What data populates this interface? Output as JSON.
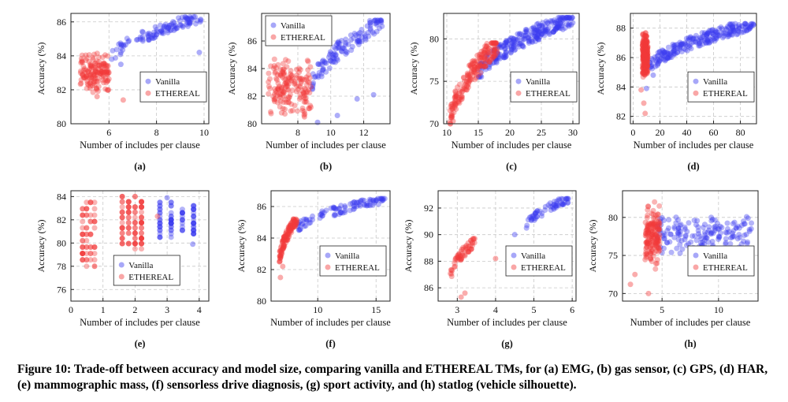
{
  "caption": "Figure 10: Trade-off between accuracy and model size, comparing vanilla and ETHEREAL TMs, for (a) EMG, (b) gas sensor, (c) GPS, (d) HAR, (e) mammographic mass, (f) sensorless drive diagnosis, (g) sport activity, and (h) statlog (vehicle silhouette).",
  "colors": {
    "vanilla": "#3b3bf0",
    "ethereal": "#f23a3a",
    "grid": "#c8c8c8"
  },
  "chart_data": [
    {
      "type": "scatter",
      "id": "a",
      "label": "(a)",
      "xlabel": "Number of includes per clause",
      "ylabel": "Accuracy (%)",
      "xlim": [
        4.4,
        10.2
      ],
      "ylim": [
        80,
        86.5
      ],
      "xticks": [
        6,
        8,
        10
      ],
      "yticks": [
        80,
        82,
        84,
        86
      ],
      "legend": "center-right",
      "series": [
        {
          "name": "Vanilla",
          "clusters": [
            {
              "x": [
                6.1,
                9.9
              ],
              "y": [
                83.8,
                86.3
              ],
              "n": 110,
              "trend": "rising"
            }
          ],
          "points": [
            [
              9.3,
              86.2
            ],
            [
              9.8,
              84.2
            ],
            [
              6.5,
              83.5
            ]
          ]
        },
        {
          "name": "ETHEREAL",
          "clusters": [
            {
              "x": [
                4.8,
                6.0
              ],
              "y": [
                81.8,
                84.2
              ],
              "n": 150,
              "trend": "none"
            }
          ],
          "points": [
            [
              6.6,
              81.4
            ],
            [
              5.5,
              81.6
            ]
          ]
        }
      ]
    },
    {
      "type": "scatter",
      "id": "b",
      "label": "(b)",
      "xlabel": "Number of includes per clause",
      "ylabel": "Accuracy (%)",
      "xlim": [
        5.8,
        13.6
      ],
      "ylim": [
        80,
        88
      ],
      "xticks": [
        8,
        10,
        12
      ],
      "yticks": [
        80,
        82,
        84,
        86
      ],
      "legend": "top-left",
      "series": [
        {
          "name": "Vanilla",
          "clusters": [
            {
              "x": [
                8.8,
                13.2
              ],
              "y": [
                82.5,
                87.5
              ],
              "n": 120,
              "trend": "rising"
            }
          ],
          "points": [
            [
              9.2,
              80.1
            ],
            [
              11.6,
              81.8
            ],
            [
              12.6,
              82.1
            ],
            [
              10.4,
              80.6
            ]
          ]
        },
        {
          "name": "ETHEREAL",
          "clusters": [
            {
              "x": [
                6.2,
                8.8
              ],
              "y": [
                80.2,
                85.0
              ],
              "n": 170,
              "trend": "none"
            }
          ],
          "points": [
            [
              8.4,
              80.5
            ],
            [
              8.7,
              81.1
            ]
          ]
        }
      ]
    },
    {
      "type": "scatter",
      "id": "c",
      "label": "(c)",
      "xlabel": "Number of includes per clause",
      "ylabel": "Accuracy (%)",
      "xlim": [
        9.5,
        31
      ],
      "ylim": [
        70,
        83
      ],
      "xticks": [
        10,
        15,
        20,
        25,
        30
      ],
      "yticks": [
        70,
        75,
        80
      ],
      "legend": "center-right",
      "series": [
        {
          "name": "Vanilla",
          "clusters": [
            {
              "x": [
                15,
                30
              ],
              "y": [
                75.5,
                82.5
              ],
              "n": 260,
              "trend": "rising"
            }
          ],
          "points": []
        },
        {
          "name": "ETHEREAL",
          "clusters": [
            {
              "x": [
                10.5,
                18
              ],
              "y": [
                70,
                79.5
              ],
              "n": 200,
              "trend": "rising"
            }
          ],
          "points": [
            [
              11,
              70.3
            ],
            [
              10.8,
              71.2
            ]
          ]
        }
      ]
    },
    {
      "type": "scatter",
      "id": "d",
      "label": "(d)",
      "xlabel": "Number of includes per clause",
      "ylabel": "Accuracy (%)",
      "xlim": [
        -2,
        92
      ],
      "ylim": [
        81.5,
        89
      ],
      "xticks": [
        0,
        20,
        40,
        60,
        80
      ],
      "yticks": [
        82,
        84,
        86,
        88
      ],
      "legend": "center-right",
      "series": [
        {
          "name": "Vanilla",
          "clusters": [
            {
              "x": [
                12,
                90
              ],
              "y": [
                85.2,
                88.3
              ],
              "n": 230,
              "trend": "rising"
            }
          ],
          "points": [
            [
              10,
              83.9
            ],
            [
              15,
              84.8
            ]
          ]
        },
        {
          "name": "ETHEREAL",
          "clusters": [
            {
              "x": [
                7,
                11
              ],
              "y": [
                84.5,
                87.8
              ],
              "n": 260,
              "trend": "none"
            }
          ],
          "points": [
            [
              8,
              82.9
            ],
            [
              9,
              82.2
            ],
            [
              6,
              83.8
            ]
          ]
        }
      ]
    },
    {
      "type": "scatter",
      "id": "e",
      "label": "(e)",
      "xlabel": "Number of includes per clause",
      "ylabel": "Accuracy (%)",
      "xlim": [
        0,
        4.3
      ],
      "ylim": [
        75,
        84.5
      ],
      "xticks": [
        0,
        1,
        2,
        3,
        4
      ],
      "yticks": [
        76,
        78,
        80,
        82,
        84
      ],
      "legend": "bottom-center",
      "series": [
        {
          "name": "Vanilla",
          "clusters": [
            {
              "x": [
                2.6,
                4.0
              ],
              "y": [
                80.5,
                83.5
              ],
              "n": 90,
              "trend": "columns"
            }
          ],
          "points": [
            [
              3.0,
              83.9
            ],
            [
              3.8,
              79.9
            ]
          ]
        },
        {
          "name": "ETHEREAL",
          "clusters": [
            {
              "x": [
                0.3,
                0.8
              ],
              "y": [
                78,
                83.5
              ],
              "n": 70,
              "trend": "columns"
            },
            {
              "x": [
                1.5,
                2.3
              ],
              "y": [
                79.5,
                84
              ],
              "n": 110,
              "trend": "columns"
            }
          ],
          "points": [
            [
              2.7,
              82.3
            ]
          ]
        }
      ]
    },
    {
      "type": "scatter",
      "id": "f",
      "label": "(f)",
      "xlabel": "Number of includes per clause",
      "ylabel": "Accuracy (%)",
      "xlim": [
        6,
        16.2
      ],
      "ylim": [
        80,
        87
      ],
      "xticks": [
        10,
        15
      ],
      "yticks": [
        80,
        82,
        84,
        86
      ],
      "legend": "bottom-right",
      "series": [
        {
          "name": "Vanilla",
          "clusters": [
            {
              "x": [
                8.2,
                15.8
              ],
              "y": [
                84.5,
                86.5
              ],
              "n": 100,
              "trend": "rising"
            }
          ],
          "points": []
        },
        {
          "name": "ETHEREAL",
          "clusters": [
            {
              "x": [
                6.7,
                8.2
              ],
              "y": [
                82.5,
                85.2
              ],
              "n": 120,
              "trend": "rising"
            }
          ],
          "points": [
            [
              6.8,
              81.5
            ],
            [
              7.0,
              82.2
            ]
          ]
        }
      ]
    },
    {
      "type": "scatter",
      "id": "g",
      "label": "(g)",
      "xlabel": "Number of includes per clause",
      "ylabel": "Accuracy (%)",
      "xlim": [
        2.5,
        6.1
      ],
      "ylim": [
        85,
        93.3
      ],
      "xticks": [
        3,
        4,
        5,
        6
      ],
      "yticks": [
        86,
        88,
        90,
        92
      ],
      "legend": "bottom-right",
      "series": [
        {
          "name": "Vanilla",
          "clusters": [
            {
              "x": [
                4.8,
                5.9
              ],
              "y": [
                90.5,
                92.7
              ],
              "n": 60,
              "trend": "rising"
            }
          ],
          "points": [
            [
              4.5,
              90.0
            ]
          ]
        },
        {
          "name": "ETHEREAL",
          "clusters": [
            {
              "x": [
                2.8,
                3.5
              ],
              "y": [
                86.5,
                89.7
              ],
              "n": 60,
              "trend": "rising"
            }
          ],
          "points": [
            [
              3.1,
              85.3
            ],
            [
              3.2,
              85.6
            ],
            [
              4.0,
              88.2
            ]
          ]
        }
      ]
    },
    {
      "type": "scatter",
      "id": "h",
      "label": "(h)",
      "xlabel": "Number of includes per clause",
      "ylabel": "Accuracy (%)",
      "xlim": [
        1.5,
        13.5
      ],
      "ylim": [
        69,
        83.5
      ],
      "xticks": [
        5,
        10
      ],
      "yticks": [
        70,
        75,
        80
      ],
      "legend": "bottom-right",
      "series": [
        {
          "name": "Vanilla",
          "clusters": [
            {
              "x": [
                4.5,
                13
              ],
              "y": [
                75,
                80.5
              ],
              "n": 160,
              "trend": "none"
            }
          ],
          "points": []
        },
        {
          "name": "ETHEREAL",
          "clusters": [
            {
              "x": [
                3.5,
                4.8
              ],
              "y": [
                73,
                82.5
              ],
              "n": 160,
              "trend": "none"
            }
          ],
          "points": [
            [
              2.2,
              71.2
            ],
            [
              2.6,
              72.5
            ],
            [
              3.8,
              70.0
            ]
          ]
        }
      ]
    }
  ]
}
